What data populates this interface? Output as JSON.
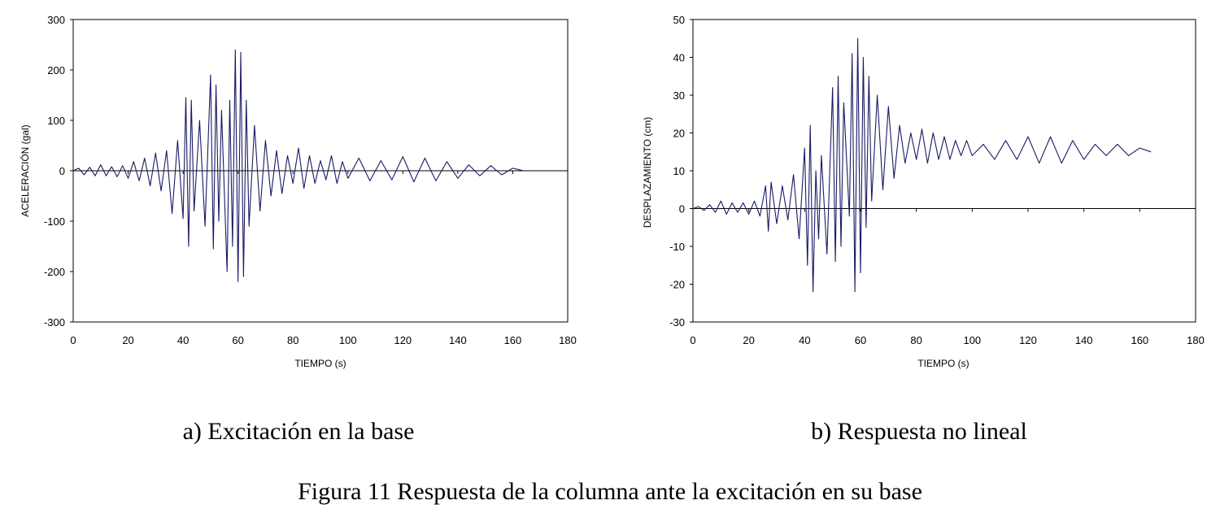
{
  "figure_caption": "Figura 11 Respuesta de la columna ante la excitación en su base",
  "chart_data": [
    {
      "type": "line",
      "subcaption": "a) Excitación en la base",
      "xlabel": "TIEMPO (s)",
      "ylabel": "ACELERACIÓN (gal)",
      "xlim": [
        0,
        180
      ],
      "ylim": [
        -300,
        300
      ],
      "x_ticks": [
        0,
        20,
        40,
        60,
        80,
        100,
        120,
        140,
        160,
        180
      ],
      "y_ticks": [
        300,
        200,
        100,
        0,
        -100,
        -200,
        -300
      ],
      "x_tick_labels": [
        "0",
        "20",
        "40",
        "60",
        "80",
        "100",
        "120",
        "140",
        "160",
        "180"
      ],
      "y_tick_labels": [
        "300",
        "200",
        "100",
        "0",
        "-100",
        "-200",
        "-300"
      ],
      "line_color": "#1a1a66",
      "grid": false,
      "series": [
        {
          "x": [
            0,
            2,
            4,
            6,
            8,
            10,
            12,
            14,
            16,
            18,
            20,
            22,
            24,
            26,
            28,
            30,
            32,
            34,
            36,
            38,
            40,
            41,
            42,
            43,
            44,
            46,
            48,
            50,
            51,
            52,
            53,
            54,
            56,
            57,
            58,
            59,
            60,
            61,
            62,
            63,
            64,
            66,
            68,
            70,
            72,
            74,
            76,
            78,
            80,
            82,
            84,
            86,
            88,
            90,
            92,
            94,
            96,
            98,
            100,
            104,
            108,
            112,
            116,
            120,
            124,
            128,
            132,
            136,
            140,
            144,
            148,
            152,
            156,
            160,
            164
          ],
          "y": [
            0,
            5,
            -8,
            7,
            -10,
            12,
            -10,
            8,
            -12,
            10,
            -15,
            18,
            -20,
            25,
            -30,
            35,
            -40,
            40,
            -85,
            60,
            -95,
            145,
            -150,
            140,
            -80,
            100,
            -110,
            190,
            -155,
            170,
            -100,
            120,
            -200,
            140,
            -150,
            240,
            -220,
            235,
            -210,
            140,
            -110,
            90,
            -80,
            60,
            -50,
            40,
            -45,
            30,
            -25,
            45,
            -35,
            30,
            -25,
            20,
            -18,
            30,
            -25,
            18,
            -15,
            25,
            -20,
            20,
            -18,
            28,
            -22,
            25,
            -20,
            18,
            -15,
            12,
            -10,
            10,
            -8,
            5,
            0
          ]
        }
      ]
    },
    {
      "type": "line",
      "subcaption": "b)  Respuesta no lineal",
      "xlabel": "TIEMPO (s)",
      "ylabel": "DESPLAZAMIENTO (cm)",
      "xlim": [
        0,
        180
      ],
      "ylim": [
        -30,
        50
      ],
      "x_ticks": [
        0,
        20,
        40,
        60,
        80,
        100,
        120,
        140,
        160,
        180
      ],
      "y_ticks": [
        50,
        40,
        30,
        20,
        10,
        0,
        -10,
        -20,
        -30
      ],
      "x_tick_labels": [
        "0",
        "20",
        "40",
        "60",
        "80",
        "100",
        "120",
        "140",
        "160",
        "180"
      ],
      "y_tick_labels": [
        "50",
        "40",
        "30",
        "20",
        "10",
        "0",
        "-10",
        "-20",
        "-30"
      ],
      "line_color": "#1a1a66",
      "grid": false,
      "series": [
        {
          "x": [
            0,
            2,
            4,
            6,
            8,
            10,
            12,
            14,
            16,
            18,
            20,
            22,
            24,
            26,
            27,
            28,
            30,
            32,
            34,
            36,
            38,
            40,
            41,
            42,
            43,
            44,
            45,
            46,
            48,
            50,
            51,
            52,
            53,
            54,
            56,
            57,
            58,
            59,
            60,
            61,
            62,
            63,
            64,
            66,
            68,
            70,
            72,
            74,
            76,
            78,
            80,
            82,
            84,
            86,
            88,
            90,
            92,
            94,
            96,
            98,
            100,
            104,
            108,
            112,
            116,
            120,
            124,
            128,
            132,
            136,
            140,
            144,
            148,
            152,
            156,
            160,
            164
          ],
          "y": [
            0,
            0.5,
            -0.5,
            1,
            -1,
            2,
            -1.5,
            1.5,
            -1,
            1.5,
            -1.5,
            2,
            -2,
            6,
            -6,
            7,
            -4,
            6,
            -3,
            9,
            -8,
            16,
            -15,
            22,
            -22,
            10,
            -8,
            14,
            -12,
            32,
            -14,
            35,
            -10,
            28,
            -2,
            41,
            -22,
            45,
            -17,
            40,
            -5,
            35,
            2,
            30,
            5,
            27,
            8,
            22,
            12,
            20,
            13,
            21,
            12,
            20,
            13,
            19,
            13,
            18,
            14,
            18,
            14,
            17,
            13,
            18,
            13,
            19,
            12,
            19,
            12,
            18,
            13,
            17,
            14,
            17,
            14,
            16,
            15
          ]
        }
      ]
    }
  ]
}
